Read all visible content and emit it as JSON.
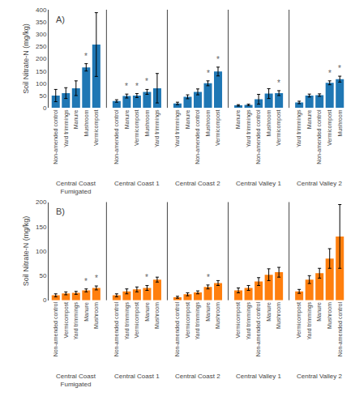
{
  "chart_data": [
    {
      "type": "bar",
      "title": "A)",
      "y_label": "Soil Nitrate-N (mg/kg)",
      "ylim": [
        0,
        400
      ],
      "yticks": [
        0,
        50,
        100,
        150,
        200,
        250,
        300,
        350,
        400
      ],
      "grid": false,
      "significance_label": "*",
      "groups": [
        {
          "name": "Central Coast\nFumigated",
          "categories": [
            "Non-amended control",
            "Yard trimmings",
            "Manure",
            "Mushroom",
            "Vermicompost"
          ],
          "values": [
            50,
            60,
            80,
            165,
            258
          ],
          "errors": [
            25,
            22,
            30,
            15,
            130
          ],
          "significant": [
            false,
            false,
            false,
            true,
            false
          ]
        },
        {
          "name": "Central Coast 1",
          "categories": [
            "Non-amended control",
            "Manure",
            "Vermicompost",
            "Mushroom",
            "Yard trimmings"
          ],
          "values": [
            28,
            48,
            50,
            65,
            80
          ],
          "errors": [
            5,
            8,
            8,
            10,
            60
          ],
          "significant": [
            false,
            true,
            true,
            true,
            false
          ]
        },
        {
          "name": "Central Coast 2",
          "categories": [
            "Yard trimmings",
            "Manure",
            "Non-amended control",
            "Mushroom",
            "Vermicompost"
          ],
          "values": [
            18,
            45,
            65,
            100,
            148
          ],
          "errors": [
            5,
            8,
            12,
            10,
            18
          ],
          "significant": [
            false,
            false,
            false,
            true,
            true
          ]
        },
        {
          "name": "Central Valley 1",
          "categories": [
            "Manure",
            "Yard trimmings",
            "Non-amended control",
            "Mushroom",
            "Vermicompost"
          ],
          "values": [
            10,
            12,
            35,
            58,
            60
          ],
          "errors": [
            3,
            3,
            20,
            20,
            10
          ],
          "significant": [
            false,
            false,
            false,
            false,
            true
          ]
        },
        {
          "name": "Central Valley 2",
          "categories": [
            "Yard trimmings",
            "Manure",
            "Non-amended control",
            "Vermicompost",
            "Mushroom"
          ],
          "values": [
            22,
            50,
            52,
            102,
            117
          ],
          "errors": [
            5,
            6,
            5,
            8,
            12
          ],
          "significant": [
            false,
            false,
            false,
            true,
            true
          ]
        }
      ]
    },
    {
      "type": "bar",
      "title": "B)",
      "y_label": "Soil Nitrate-N (mg/kg)",
      "ylim": [
        0,
        200
      ],
      "yticks": [
        0,
        50,
        100,
        150,
        200
      ],
      "grid": false,
      "significance_label": "*",
      "groups": [
        {
          "name": "Central Coast\nFumigated",
          "categories": [
            "Non-amended control",
            "Vermicompost",
            "Yard trimmings",
            "Manure",
            "Mushroom"
          ],
          "values": [
            10,
            14,
            15,
            20,
            25
          ],
          "errors": [
            3,
            3,
            3,
            3,
            4
          ],
          "significant": [
            false,
            false,
            false,
            true,
            true
          ]
        },
        {
          "name": "Central Coast 1",
          "categories": [
            "Non-amended control",
            "Yard trimmings",
            "Vermicompost",
            "Manure",
            "Mushroom"
          ],
          "values": [
            10,
            18,
            22,
            25,
            42
          ],
          "errors": [
            3,
            5,
            5,
            5,
            5
          ],
          "significant": [
            false,
            false,
            false,
            true,
            false
          ]
        },
        {
          "name": "Central Coast 2",
          "categories": [
            "Non-amended control",
            "Vermicompost",
            "Yard trimmings",
            "Manure",
            "Mushroom"
          ],
          "values": [
            6,
            12,
            16,
            27,
            35
          ],
          "errors": [
            2,
            3,
            3,
            4,
            5
          ],
          "significant": [
            false,
            false,
            false,
            true,
            false
          ]
        },
        {
          "name": "Central Valley 1",
          "categories": [
            "Vermicompost",
            "Yard trimmings",
            "Non-amended control",
            "Manure",
            "Mushroom"
          ],
          "values": [
            20,
            25,
            38,
            52,
            57
          ],
          "errors": [
            5,
            5,
            8,
            12,
            10
          ],
          "significant": [
            false,
            false,
            false,
            false,
            false
          ]
        },
        {
          "name": "Central Valley 2",
          "categories": [
            "Vermicompost",
            "Yard trimmings",
            "Manure",
            "Mushroom",
            "Non-amended control"
          ],
          "values": [
            18,
            42,
            55,
            85,
            130
          ],
          "errors": [
            4,
            8,
            10,
            20,
            65
          ],
          "significant": [
            false,
            false,
            false,
            false,
            false
          ]
        }
      ]
    }
  ]
}
